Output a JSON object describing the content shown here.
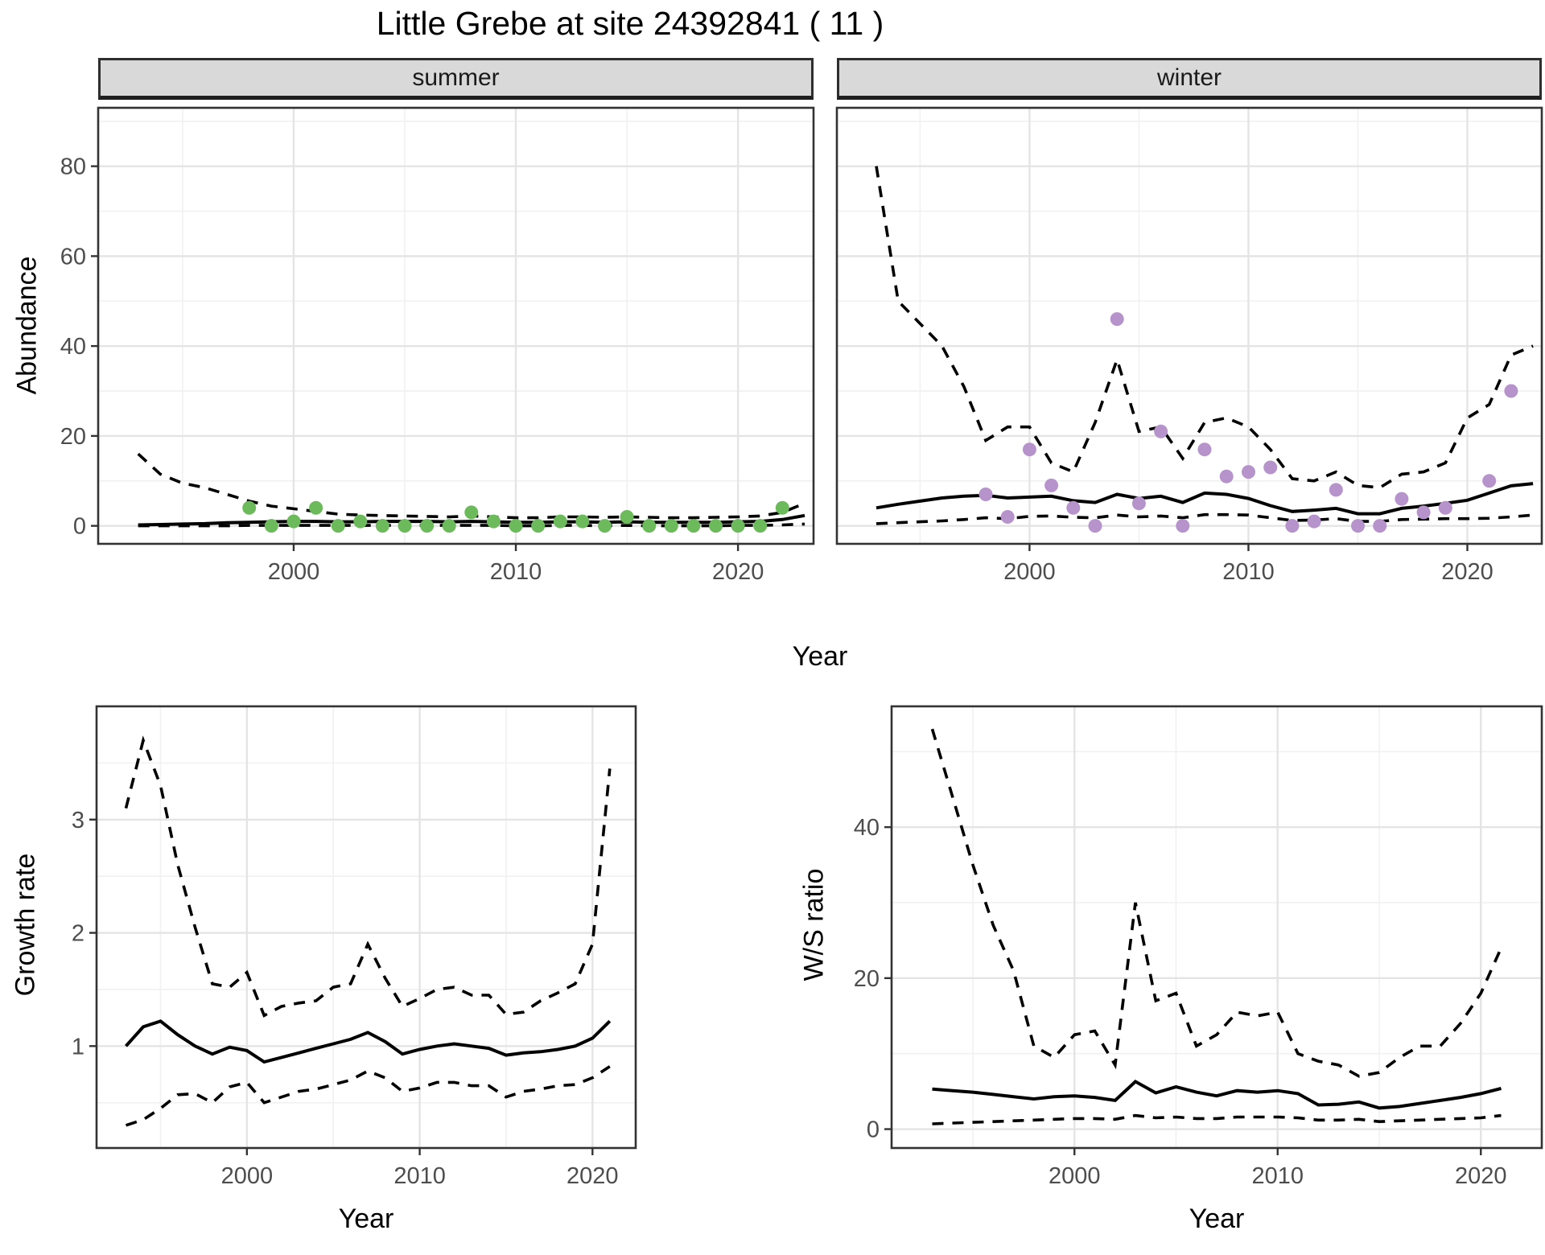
{
  "title": "Little Grebe at site 24392841 ( 11 )",
  "colors": {
    "summer_point": "#6CBA5C",
    "winter_point": "#B793CC",
    "line": "#000000",
    "grid_major": "#E4E4E4",
    "grid_minor": "#F1F1F1",
    "panel_border": "#333333",
    "strip_bg": "#D9D9D9",
    "tick_label": "#4D4D4D"
  },
  "shared_axis": {
    "top_xlabel": "Year"
  },
  "chart_data": [
    {
      "id": "abundance_summer",
      "type": "scatter",
      "facet_label": "summer",
      "ylabel": "Abundance",
      "xlabel": "Year",
      "xlim": [
        1991.2,
        2023.4
      ],
      "ylim": [
        -4,
        93
      ],
      "xticks": [
        2000,
        2010,
        2020
      ],
      "xticks_minor": [
        1995,
        2005,
        2015
      ],
      "yticks": [
        0,
        20,
        40,
        60,
        80
      ],
      "yticks_minor": [
        10,
        30,
        50,
        70,
        90
      ],
      "grid": true,
      "legend": "none",
      "points": {
        "color": "#6CBA5C",
        "x": [
          1998,
          1999,
          2000,
          2001,
          2002,
          2003,
          2004,
          2005,
          2006,
          2007,
          2008,
          2009,
          2010,
          2011,
          2012,
          2013,
          2014,
          2015,
          2016,
          2017,
          2018,
          2019,
          2020,
          2021,
          2022
        ],
        "y": [
          4,
          0,
          1,
          4,
          0,
          1,
          0,
          0,
          0,
          0,
          3,
          1,
          0,
          0,
          1,
          1,
          0,
          2,
          0,
          0,
          0,
          0,
          0,
          0,
          4
        ]
      },
      "median_line": {
        "x": [
          1993,
          1994,
          1995,
          1996,
          1997,
          1998,
          1999,
          2000,
          2001,
          2002,
          2003,
          2004,
          2005,
          2006,
          2007,
          2008,
          2009,
          2010,
          2011,
          2012,
          2013,
          2014,
          2015,
          2016,
          2017,
          2018,
          2019,
          2020,
          2021,
          2022,
          2023
        ],
        "y": [
          0.2,
          0.3,
          0.4,
          0.5,
          0.7,
          0.8,
          0.9,
          1.0,
          1.0,
          0.9,
          0.9,
          1.0,
          1.0,
          1.0,
          0.9,
          1.0,
          0.9,
          0.8,
          0.8,
          0.9,
          0.9,
          0.8,
          0.9,
          0.8,
          0.8,
          0.8,
          0.8,
          0.9,
          1.0,
          1.4,
          2.3
        ]
      },
      "upper_ci_line": {
        "x": [
          1993,
          1994,
          1995,
          1996,
          1997,
          1998,
          1999,
          2000,
          2001,
          2002,
          2003,
          2004,
          2005,
          2006,
          2007,
          2008,
          2009,
          2010,
          2011,
          2012,
          2013,
          2014,
          2015,
          2016,
          2017,
          2018,
          2019,
          2020,
          2021,
          2022,
          2023
        ],
        "y": [
          16,
          11.5,
          9.5,
          8.5,
          7,
          5.5,
          4.4,
          3.8,
          3.2,
          2.6,
          2.4,
          2.3,
          2.2,
          2.1,
          2.0,
          2.2,
          2.0,
          1.8,
          1.8,
          2.0,
          2.0,
          1.9,
          2.0,
          1.9,
          1.8,
          1.8,
          1.9,
          2.0,
          2.2,
          3.0,
          5.0
        ]
      },
      "lower_ci_line": {
        "x": [
          1993,
          1994,
          1995,
          1996,
          1997,
          1998,
          1999,
          2000,
          2001,
          2002,
          2003,
          2004,
          2005,
          2006,
          2007,
          2008,
          2009,
          2010,
          2011,
          2012,
          2013,
          2014,
          2015,
          2016,
          2017,
          2018,
          2019,
          2020,
          2021,
          2022,
          2023
        ],
        "y": [
          0,
          0,
          0,
          0,
          0,
          0.1,
          0.1,
          0.1,
          0.1,
          0.1,
          0.1,
          0.1,
          0.1,
          0.1,
          0.1,
          0.1,
          0.1,
          0,
          0,
          0.1,
          0.1,
          0,
          0.1,
          0,
          0,
          0,
          0,
          0.1,
          0.1,
          0.2,
          0.4
        ]
      }
    },
    {
      "id": "abundance_winter",
      "type": "scatter",
      "facet_label": "winter",
      "ylabel": "Abundance",
      "xlabel": "Year",
      "xlim": [
        1991.2,
        2023.4
      ],
      "ylim": [
        -4,
        93
      ],
      "xticks": [
        2000,
        2010,
        2020
      ],
      "xticks_minor": [
        1995,
        2005,
        2015
      ],
      "yticks": [
        0,
        20,
        40,
        60,
        80
      ],
      "yticks_minor": [
        10,
        30,
        50,
        70,
        90
      ],
      "grid": true,
      "legend": "none",
      "points": {
        "color": "#B793CC",
        "x": [
          1998,
          1999,
          2000,
          2001,
          2002,
          2003,
          2004,
          2005,
          2006,
          2007,
          2008,
          2009,
          2010,
          2011,
          2012,
          2013,
          2014,
          2015,
          2016,
          2017,
          2018,
          2019,
          2021,
          2022
        ],
        "y": [
          7,
          2,
          17,
          9,
          4,
          0,
          46,
          5,
          21,
          0,
          17,
          11,
          12,
          13,
          0,
          1,
          8,
          0,
          0,
          6,
          3,
          4,
          10,
          30
        ]
      },
      "median_line": {
        "x": [
          1993,
          1994,
          1995,
          1996,
          1997,
          1998,
          1999,
          2000,
          2001,
          2002,
          2003,
          2004,
          2005,
          2006,
          2007,
          2008,
          2009,
          2010,
          2011,
          2012,
          2013,
          2014,
          2015,
          2016,
          2017,
          2018,
          2019,
          2020,
          2021,
          2022,
          2023
        ],
        "y": [
          4.0,
          4.8,
          5.5,
          6.2,
          6.6,
          6.8,
          6.2,
          6.4,
          6.6,
          5.6,
          5.2,
          7.0,
          6.1,
          6.6,
          5.2,
          7.3,
          7.0,
          6.1,
          4.5,
          3.2,
          3.5,
          3.9,
          2.7,
          2.7,
          3.9,
          4.4,
          5.0,
          5.7,
          7.3,
          8.9,
          9.4
        ]
      },
      "upper_ci_line": {
        "x": [
          1993,
          1994,
          1995,
          1996,
          1997,
          1998,
          1999,
          2000,
          2001,
          2002,
          2003,
          2004,
          2005,
          2006,
          2007,
          2008,
          2009,
          2010,
          2011,
          2012,
          2013,
          2014,
          2015,
          2016,
          2017,
          2018,
          2019,
          2020,
          2021,
          2022,
          2023
        ],
        "y": [
          80,
          50,
          45,
          40,
          31,
          19,
          22,
          22,
          14,
          12,
          23,
          37,
          21,
          22,
          15,
          23,
          24,
          22,
          17,
          10.5,
          10,
          12,
          9,
          8.5,
          11.5,
          12,
          14,
          24,
          27,
          38,
          40
        ]
      },
      "lower_ci_line": {
        "x": [
          1993,
          1994,
          1995,
          1996,
          1997,
          1998,
          1999,
          2000,
          2001,
          2002,
          2003,
          2004,
          2005,
          2006,
          2007,
          2008,
          2009,
          2010,
          2011,
          2012,
          2013,
          2014,
          2015,
          2016,
          2017,
          2018,
          2019,
          2020,
          2021,
          2022,
          2023
        ],
        "y": [
          0.5,
          0.7,
          0.9,
          1.1,
          1.4,
          1.8,
          1.6,
          2.1,
          2.2,
          1.9,
          1.8,
          2.4,
          2.0,
          2.2,
          1.8,
          2.5,
          2.5,
          2.4,
          1.8,
          1.2,
          1.3,
          1.6,
          1.0,
          1.0,
          1.4,
          1.5,
          1.6,
          1.6,
          1.7,
          2.0,
          2.4
        ]
      }
    },
    {
      "id": "growth_rate",
      "type": "line",
      "facet_label": "",
      "ylabel": "Growth rate",
      "xlabel": "Year",
      "xlim": [
        1991.3,
        2022.5
      ],
      "ylim": [
        0.1,
        4.0
      ],
      "xticks": [
        2000,
        2010,
        2020
      ],
      "xticks_minor": [
        1995,
        2005,
        2015
      ],
      "yticks": [
        1,
        2,
        3
      ],
      "yticks_minor": [
        0.5,
        1.5,
        2.5,
        3.5
      ],
      "grid": true,
      "legend": "none",
      "median_line": {
        "x": [
          1993,
          1994,
          1995,
          1996,
          1997,
          1998,
          1999,
          2000,
          2001,
          2002,
          2003,
          2004,
          2005,
          2006,
          2007,
          2008,
          2009,
          2010,
          2011,
          2012,
          2013,
          2014,
          2015,
          2016,
          2017,
          2018,
          2019,
          2020,
          2021
        ],
        "y": [
          1.0,
          1.17,
          1.22,
          1.1,
          1.0,
          0.93,
          0.99,
          0.96,
          0.86,
          0.9,
          0.94,
          0.98,
          1.02,
          1.06,
          1.12,
          1.04,
          0.93,
          0.97,
          1.0,
          1.02,
          1.0,
          0.98,
          0.92,
          0.94,
          0.95,
          0.97,
          1.0,
          1.07,
          1.22
        ]
      },
      "upper_ci_line": {
        "x": [
          1993,
          1994,
          1995,
          1996,
          1997,
          1998,
          1999,
          2000,
          2001,
          2002,
          2003,
          2004,
          2005,
          2006,
          2007,
          2008,
          2009,
          2010,
          2011,
          2012,
          2013,
          2014,
          2015,
          2016,
          2017,
          2018,
          2019,
          2020,
          2021
        ],
        "y": [
          3.1,
          3.7,
          3.3,
          2.6,
          2.05,
          1.55,
          1.52,
          1.65,
          1.27,
          1.35,
          1.38,
          1.4,
          1.52,
          1.55,
          1.9,
          1.6,
          1.35,
          1.42,
          1.5,
          1.52,
          1.45,
          1.45,
          1.28,
          1.3,
          1.4,
          1.47,
          1.55,
          1.9,
          3.45
        ]
      },
      "lower_ci_line": {
        "x": [
          1993,
          1994,
          1995,
          1996,
          1997,
          1998,
          1999,
          2000,
          2001,
          2002,
          2003,
          2004,
          2005,
          2006,
          2007,
          2008,
          2009,
          2010,
          2011,
          2012,
          2013,
          2014,
          2015,
          2016,
          2017,
          2018,
          2019,
          2020,
          2021
        ],
        "y": [
          0.3,
          0.35,
          0.45,
          0.57,
          0.58,
          0.5,
          0.64,
          0.68,
          0.5,
          0.55,
          0.6,
          0.62,
          0.66,
          0.7,
          0.78,
          0.72,
          0.6,
          0.63,
          0.68,
          0.68,
          0.65,
          0.65,
          0.55,
          0.6,
          0.62,
          0.65,
          0.66,
          0.72,
          0.82
        ]
      }
    },
    {
      "id": "ws_ratio",
      "type": "line",
      "facet_label": "",
      "ylabel": "W/S ratio",
      "xlabel": "Year",
      "xlim": [
        1991.0,
        2023.0
      ],
      "ylim": [
        -2.5,
        56
      ],
      "xticks": [
        2000,
        2010,
        2020
      ],
      "xticks_minor": [
        1995,
        2005,
        2015
      ],
      "yticks": [
        0,
        20,
        40
      ],
      "yticks_minor": [
        10,
        30,
        50
      ],
      "grid": true,
      "legend": "none",
      "median_line": {
        "x": [
          1993,
          1994,
          1995,
          1996,
          1997,
          1998,
          1999,
          2000,
          2001,
          2002,
          2003,
          2004,
          2005,
          2006,
          2007,
          2008,
          2009,
          2010,
          2011,
          2012,
          2013,
          2014,
          2015,
          2016,
          2017,
          2018,
          2019,
          2020,
          2021
        ],
        "y": [
          5.3,
          5.1,
          4.9,
          4.6,
          4.3,
          4.0,
          4.3,
          4.4,
          4.2,
          3.8,
          6.3,
          4.8,
          5.6,
          4.9,
          4.4,
          5.1,
          4.9,
          5.1,
          4.7,
          3.2,
          3.3,
          3.6,
          2.8,
          3.0,
          3.4,
          3.8,
          4.2,
          4.7,
          5.4
        ]
      },
      "upper_ci_line": {
        "x": [
          1993,
          1994,
          1995,
          1996,
          1997,
          1998,
          1999,
          2000,
          2001,
          2002,
          2003,
          2004,
          2005,
          2006,
          2007,
          2008,
          2009,
          2010,
          2011,
          2012,
          2013,
          2014,
          2015,
          2016,
          2017,
          2018,
          2019,
          2020,
          2021
        ],
        "y": [
          53,
          44,
          35,
          27,
          21,
          11,
          9.5,
          12.5,
          13,
          8.5,
          30,
          17,
          18,
          11,
          12.5,
          15.5,
          15,
          15.5,
          10,
          9,
          8.5,
          7,
          7.5,
          9.5,
          11,
          11,
          14,
          18,
          24
        ]
      },
      "lower_ci_line": {
        "x": [
          1993,
          1994,
          1995,
          1996,
          1997,
          1998,
          1999,
          2000,
          2001,
          2002,
          2003,
          2004,
          2005,
          2006,
          2007,
          2008,
          2009,
          2010,
          2011,
          2012,
          2013,
          2014,
          2015,
          2016,
          2017,
          2018,
          2019,
          2020,
          2021
        ],
        "y": [
          0.7,
          0.8,
          0.9,
          1.0,
          1.1,
          1.2,
          1.3,
          1.4,
          1.4,
          1.3,
          1.8,
          1.5,
          1.6,
          1.4,
          1.4,
          1.6,
          1.6,
          1.6,
          1.5,
          1.2,
          1.2,
          1.3,
          1.0,
          1.1,
          1.2,
          1.3,
          1.4,
          1.5,
          1.8
        ]
      }
    }
  ]
}
